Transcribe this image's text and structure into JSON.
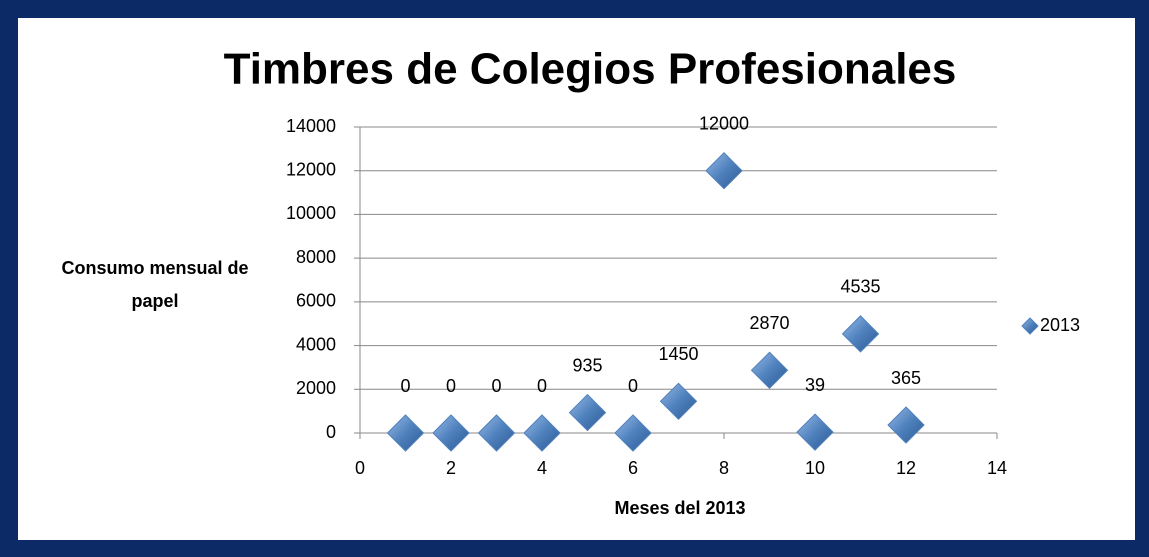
{
  "chart_data": {
    "type": "scatter",
    "title": "Timbres de Colegios  Profesionales",
    "xlabel": "Meses del 2013",
    "ylabel": "Consumo mensual de papel",
    "series": [
      {
        "name": "2013",
        "color": "#4f81bd",
        "x": [
          1,
          2,
          3,
          4,
          5,
          6,
          7,
          8,
          9,
          10,
          11,
          12
        ],
        "values": [
          0,
          0,
          0,
          0,
          935,
          0,
          1450,
          12000,
          2870,
          39,
          4535,
          365
        ]
      }
    ],
    "xlim": [
      0,
      14
    ],
    "xticks": [
      0,
      2,
      4,
      6,
      8,
      10,
      12,
      14
    ],
    "ylim": [
      0,
      14000
    ],
    "yticks": [
      0,
      2000,
      4000,
      6000,
      8000,
      10000,
      12000,
      14000
    ],
    "grid": true,
    "legend": "right"
  }
}
